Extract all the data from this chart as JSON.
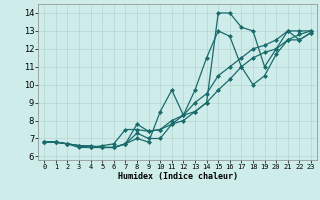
{
  "xlabel": "Humidex (Indice chaleur)",
  "bg_color": "#cdecea",
  "grid_color": "#b8d4d2",
  "line_color": "#1a6b6b",
  "marker": "D",
  "markersize": 2.0,
  "linewidth": 0.9,
  "xlim": [
    -0.5,
    23.5
  ],
  "ylim": [
    5.8,
    14.5
  ],
  "xticks": [
    0,
    1,
    2,
    3,
    4,
    5,
    6,
    7,
    8,
    9,
    10,
    11,
    12,
    13,
    14,
    15,
    16,
    17,
    18,
    19,
    20,
    21,
    22,
    23
  ],
  "yticks": [
    6,
    7,
    8,
    9,
    10,
    11,
    12,
    13,
    14
  ],
  "lines": [
    {
      "x": [
        0,
        1,
        2,
        3,
        4,
        5,
        6,
        7,
        8,
        9,
        10,
        11,
        12,
        13,
        14,
        15,
        16,
        17,
        18,
        19,
        20,
        21,
        22,
        23
      ],
      "y": [
        6.8,
        6.8,
        6.7,
        6.6,
        6.5,
        6.5,
        6.5,
        6.7,
        7.8,
        7.4,
        7.5,
        7.8,
        8.0,
        8.5,
        9.0,
        9.7,
        10.3,
        11.0,
        11.5,
        11.8,
        12.0,
        12.5,
        12.8,
        13.0
      ]
    },
    {
      "x": [
        0,
        1,
        2,
        3,
        4,
        5,
        6,
        7,
        8,
        9,
        10,
        11,
        12,
        13,
        14,
        15,
        16,
        17,
        18,
        19,
        20,
        21,
        22,
        23
      ],
      "y": [
        6.8,
        6.8,
        6.7,
        6.5,
        6.5,
        6.6,
        6.7,
        7.5,
        7.5,
        7.4,
        7.5,
        8.0,
        8.3,
        9.0,
        9.5,
        10.5,
        11.0,
        11.5,
        12.0,
        12.2,
        12.5,
        13.0,
        13.0,
        13.0
      ]
    },
    {
      "x": [
        0,
        1,
        2,
        3,
        4,
        5,
        6,
        7,
        8,
        9,
        10,
        11,
        12,
        13,
        14,
        15,
        16,
        17,
        18,
        19,
        20,
        21,
        22,
        23
      ],
      "y": [
        6.8,
        6.8,
        6.7,
        6.6,
        6.5,
        6.5,
        6.5,
        6.7,
        7.3,
        7.0,
        7.0,
        7.8,
        8.3,
        9.7,
        11.5,
        13.0,
        12.7,
        11.0,
        10.0,
        10.5,
        11.7,
        12.5,
        12.5,
        12.9
      ]
    },
    {
      "x": [
        0,
        1,
        2,
        3,
        4,
        5,
        6,
        7,
        8,
        9,
        10,
        11,
        12,
        13,
        14,
        15,
        16,
        17,
        18,
        19,
        20,
        21,
        22,
        23
      ],
      "y": [
        6.8,
        6.8,
        6.7,
        6.6,
        6.6,
        6.5,
        6.5,
        6.7,
        7.0,
        6.8,
        8.5,
        9.7,
        8.3,
        8.5,
        9.0,
        14.0,
        14.0,
        13.2,
        13.0,
        11.0,
        12.0,
        13.0,
        12.5,
        12.9
      ]
    }
  ]
}
